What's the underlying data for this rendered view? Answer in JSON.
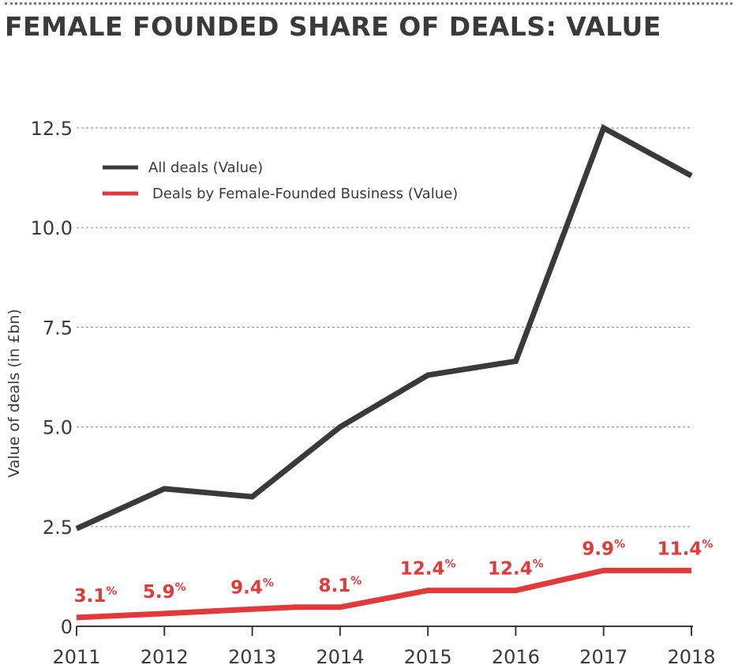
{
  "title": "FEMALE FOUNDED SHARE OF DEALS: VALUE",
  "colors": {
    "all": "#3a3a3a",
    "female": "#e03a3a",
    "grid": "#9a9a9a",
    "text": "#3a3a3a"
  },
  "chart_data": {
    "type": "line",
    "title": "FEMALE FOUNDED SHARE OF DEALS: VALUE",
    "xlabel": "",
    "ylabel": "Value of deals (in £bn)",
    "ylim": [
      0,
      12.5
    ],
    "yticks": [
      0,
      2.5,
      5.0,
      7.5,
      10.0,
      12.5
    ],
    "ytick_labels": [
      "0",
      "2.5",
      "5.0",
      "7.5",
      "10.0",
      "12.5"
    ],
    "categories": [
      "2011",
      "2012",
      "2013",
      "2014",
      "2015",
      "2016",
      "2017",
      "2018"
    ],
    "grid": true,
    "legend_position": "top-left",
    "series": [
      {
        "name": "All deals (Value)",
        "color": "#3a3a3a",
        "x": [
          2011,
          2012,
          2013,
          2014,
          2015,
          2016,
          2017,
          2018
        ],
        "values": [
          2.45,
          3.45,
          3.25,
          5.0,
          6.3,
          6.65,
          12.5,
          11.3
        ]
      },
      {
        "name": "Deals by Female-Founded Business (Value)",
        "color": "#e03a3a",
        "x": [
          2011,
          2012,
          2013,
          2013.5,
          2014,
          2015,
          2016,
          2017,
          2018
        ],
        "values": [
          0.22,
          0.32,
          0.43,
          0.48,
          0.48,
          0.9,
          0.9,
          1.4,
          1.4
        ]
      }
    ],
    "annotations": [
      {
        "x": 2011,
        "value": "3.1",
        "unit": "%"
      },
      {
        "x": 2012,
        "value": "5.9",
        "unit": "%"
      },
      {
        "x": 2013,
        "value": "9.4",
        "unit": "%"
      },
      {
        "x": 2014,
        "value": "8.1",
        "unit": "%"
      },
      {
        "x": 2015,
        "value": "12.4",
        "unit": "%"
      },
      {
        "x": 2016,
        "value": "12.4",
        "unit": "%"
      },
      {
        "x": 2017,
        "value": "9.9",
        "unit": "%"
      },
      {
        "x": 2018,
        "value": "11.4",
        "unit": "%"
      }
    ]
  }
}
